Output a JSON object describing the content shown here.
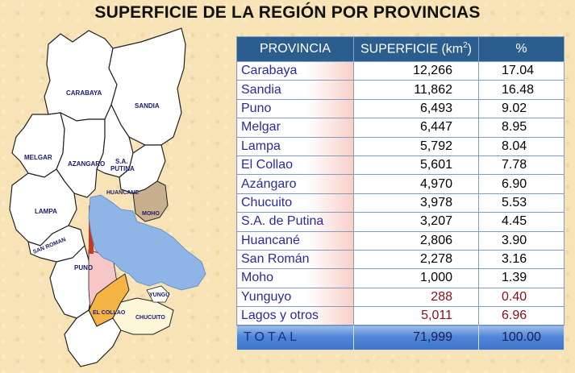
{
  "title": "SUPERFICIE DE LA REGIÓN POR PROVINCIAS",
  "map": {
    "labels": {
      "carabaya": "CARABAYA",
      "sandia": "SANDIA",
      "melgar": "MELGAR",
      "azangaro": "AZANGARO",
      "sa_putina_1": "S.A.",
      "sa_putina_2": "PUTINA",
      "huancane": "HUANCANE",
      "moho": "MOHO",
      "lampa": "LAMPA",
      "san_roman": "SAN ROMAN",
      "puno": "PUNO",
      "yunguyo": "YUNGU",
      "el_collao": "EL COLLAO",
      "chucuito": "CHUCUITO"
    },
    "colors": {
      "lake": "#8fb4e6",
      "puno": "#f6c5c5",
      "el_collao": "#f6b445",
      "moho": "#c8b08e",
      "chucuito": "#fdf6d9",
      "red_strip": "#c0392b"
    }
  },
  "table": {
    "headers": {
      "provincia": "PROVINCIA",
      "superficie": "SUPERFICIE  (km",
      "superficie_sup": "2",
      "superficie_end": ")",
      "pct": "%"
    },
    "rows": [
      {
        "provincia": "Carabaya",
        "superficie": "12,266",
        "pct": "17.04"
      },
      {
        "provincia": "Sandia",
        "superficie": "11,862",
        "pct": "16.48"
      },
      {
        "provincia": "Puno",
        "superficie": "6,493",
        "pct": "9.02"
      },
      {
        "provincia": "Melgar",
        "superficie": "6,447",
        "pct": "8.95"
      },
      {
        "provincia": "Lampa",
        "superficie": "5,792",
        "pct": "8.04"
      },
      {
        "provincia": "El Collao",
        "superficie": "5,601",
        "pct": "7.78"
      },
      {
        "provincia": "Azángaro",
        "superficie": "4,970",
        "pct": "6.90"
      },
      {
        "provincia": "Chucuito",
        "superficie": "3,978",
        "pct": "5.53"
      },
      {
        "provincia": "S.A. de Putina",
        "superficie": "3,207",
        "pct": "4.45"
      },
      {
        "provincia": "Huancané",
        "superficie": "2,806",
        "pct": "3.90"
      },
      {
        "provincia": "San Román",
        "superficie": "2,278",
        "pct": "3.16"
      },
      {
        "provincia": "Moho",
        "superficie": "1,000",
        "pct": "1.39"
      },
      {
        "provincia": "Yunguyo",
        "superficie": "288",
        "pct": "0.40"
      },
      {
        "provincia": "Lagos y otros",
        "superficie": "5,011",
        "pct": "6.96"
      }
    ],
    "total": {
      "label": "TOTAL",
      "superficie": "71,999",
      "pct": "100.00"
    }
  }
}
